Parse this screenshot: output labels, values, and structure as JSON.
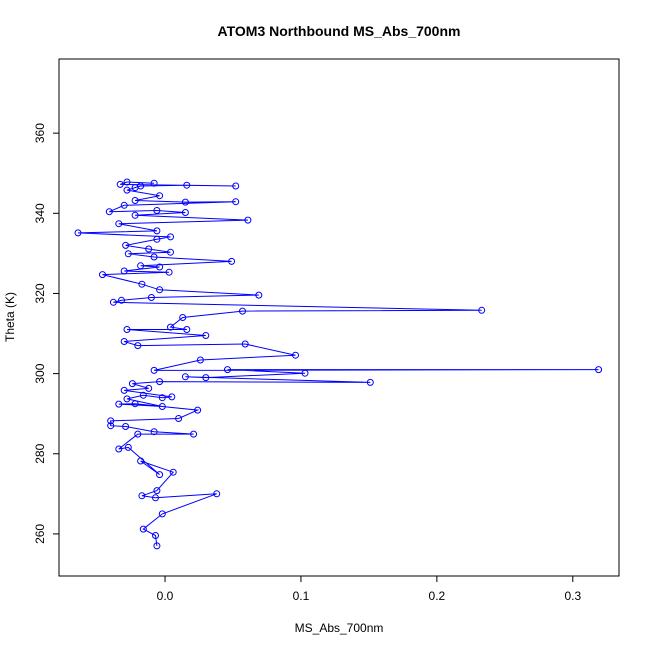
{
  "chart_data": {
    "type": "scatter",
    "title": "ATOM3 Northbound MS_Abs_700nm",
    "xlabel": "MS_Abs_700nm",
    "ylabel": "Theta (K)",
    "xlim": [
      -0.078,
      0.334
    ],
    "ylim": [
      249.5,
      378.5
    ],
    "xticks": [
      0.0,
      0.1,
      0.2,
      0.3
    ],
    "xtick_labels": [
      "0.0",
      "0.1",
      "0.2",
      "0.3"
    ],
    "yticks": [
      260,
      280,
      300,
      320,
      340,
      360
    ],
    "ytick_labels": [
      "260",
      "280",
      "300",
      "320",
      "340",
      "360"
    ],
    "grid": false,
    "legend": "none",
    "series": [
      {
        "color": "#0000ff",
        "marker": "open-circle",
        "connected": true,
        "points": [
          [
            -0.006,
            257.0
          ],
          [
            -0.007,
            259.6
          ],
          [
            -0.016,
            261.2
          ],
          [
            -0.002,
            265.0
          ],
          [
            0.038,
            270.0
          ],
          [
            -0.007,
            269.0
          ],
          [
            -0.017,
            269.5
          ],
          [
            -0.006,
            270.8
          ],
          [
            0.006,
            275.4
          ],
          [
            -0.018,
            278.2
          ],
          [
            -0.004,
            274.8
          ],
          [
            -0.027,
            281.6
          ],
          [
            -0.034,
            281.2
          ],
          [
            -0.02,
            284.9
          ],
          [
            0.021,
            284.9
          ],
          [
            -0.008,
            285.5
          ],
          [
            -0.029,
            286.8
          ],
          [
            -0.04,
            287.0
          ],
          [
            -0.04,
            288.2
          ],
          [
            0.01,
            288.8
          ],
          [
            0.024,
            290.9
          ],
          [
            -0.022,
            292.5
          ],
          [
            -0.034,
            292.4
          ],
          [
            -0.002,
            291.8
          ],
          [
            -0.028,
            293.7
          ],
          [
            -0.016,
            294.6
          ],
          [
            -0.002,
            294.0
          ],
          [
            0.005,
            294.2
          ],
          [
            -0.03,
            295.8
          ],
          [
            -0.012,
            296.3
          ],
          [
            -0.024,
            297.5
          ],
          [
            -0.004,
            298.0
          ],
          [
            0.151,
            297.8
          ],
          [
            0.015,
            299.2
          ],
          [
            0.03,
            299.0
          ],
          [
            0.103,
            300.1
          ],
          [
            0.046,
            301.0
          ],
          [
            0.319,
            301.0
          ],
          [
            -0.008,
            300.8
          ],
          [
            0.026,
            303.4
          ],
          [
            0.096,
            304.6
          ],
          [
            0.059,
            307.4
          ],
          [
            -0.02,
            307.0
          ],
          [
            -0.03,
            308.0
          ],
          [
            0.03,
            309.5
          ],
          [
            -0.028,
            311.0
          ],
          [
            0.016,
            311.0
          ],
          [
            0.004,
            311.6
          ],
          [
            0.013,
            314.0
          ],
          [
            0.057,
            315.6
          ],
          [
            0.233,
            315.8
          ],
          [
            -0.038,
            317.8
          ],
          [
            -0.032,
            318.3
          ],
          [
            -0.01,
            319.0
          ],
          [
            0.069,
            319.6
          ],
          [
            -0.004,
            320.9
          ],
          [
            -0.017,
            322.3
          ],
          [
            -0.046,
            324.7
          ],
          [
            0.003,
            325.3
          ],
          [
            -0.03,
            325.6
          ],
          [
            -0.004,
            326.6
          ],
          [
            -0.018,
            326.9
          ],
          [
            0.049,
            328.0
          ],
          [
            -0.008,
            329.1
          ],
          [
            -0.027,
            329.9
          ],
          [
            0.004,
            330.3
          ],
          [
            -0.012,
            331.1
          ],
          [
            -0.029,
            332.0
          ],
          [
            -0.006,
            333.5
          ],
          [
            0.004,
            334.1
          ],
          [
            -0.064,
            335.1
          ],
          [
            -0.006,
            335.6
          ],
          [
            -0.034,
            337.4
          ],
          [
            0.061,
            338.3
          ],
          [
            -0.022,
            339.5
          ],
          [
            0.015,
            340.2
          ],
          [
            -0.006,
            340.7
          ],
          [
            -0.041,
            340.4
          ],
          [
            -0.03,
            342.0
          ],
          [
            0.052,
            342.9
          ],
          [
            0.015,
            342.8
          ],
          [
            -0.022,
            343.2
          ],
          [
            -0.004,
            344.4
          ],
          [
            -0.028,
            345.8
          ],
          [
            -0.022,
            346.4
          ],
          [
            -0.018,
            346.8
          ],
          [
            0.016,
            347.0
          ],
          [
            0.052,
            346.8
          ],
          [
            -0.033,
            347.2
          ],
          [
            -0.028,
            347.8
          ],
          [
            -0.008,
            347.5
          ]
        ]
      }
    ]
  }
}
